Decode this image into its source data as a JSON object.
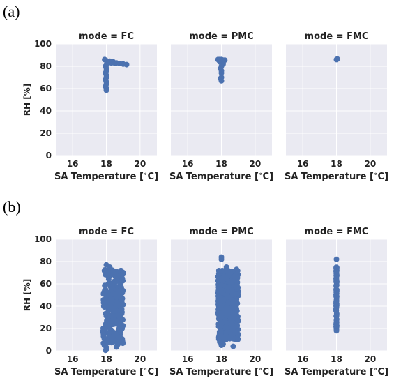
{
  "figure": {
    "panel_labels": [
      "(a)",
      "(b)"
    ]
  },
  "chart_data": [
    {
      "type": "scatter",
      "panel": "(a)",
      "title": "mode = FC",
      "xlabel": "SA Temperature [$^\\circ$C]",
      "ylabel": "RH [%]",
      "xlim": [
        15,
        21
      ],
      "ylim": [
        0,
        100
      ],
      "xticks": [
        16,
        18,
        20
      ],
      "yticks": [
        0,
        20,
        40,
        60,
        80,
        100
      ],
      "grid": true,
      "color": "#4c72b0",
      "points": [
        [
          17.9,
          86
        ],
        [
          18.0,
          85
        ],
        [
          18.05,
          84
        ],
        [
          18.2,
          84.5
        ],
        [
          18.4,
          84
        ],
        [
          18.6,
          83
        ],
        [
          18.8,
          82.5
        ],
        [
          19.0,
          82
        ],
        [
          19.2,
          81.5
        ],
        [
          18.1,
          83.5
        ],
        [
          18.3,
          83
        ],
        [
          18.5,
          82.8
        ],
        [
          17.95,
          80
        ],
        [
          18.0,
          78
        ],
        [
          18.0,
          76
        ],
        [
          17.95,
          74
        ],
        [
          18.0,
          72
        ],
        [
          18.0,
          70
        ],
        [
          17.95,
          68
        ],
        [
          18.0,
          66
        ],
        [
          18.0,
          64
        ],
        [
          17.95,
          62
        ],
        [
          18.0,
          60
        ],
        [
          18.0,
          58.5
        ],
        [
          18.05,
          82
        ],
        [
          18.0,
          81
        ]
      ]
    },
    {
      "type": "scatter",
      "panel": "(a)",
      "title": "mode = PMC",
      "xlabel": "SA Temperature [$^\\circ$C]",
      "xlim": [
        15,
        21
      ],
      "ylim": [
        0,
        100
      ],
      "xticks": [
        16,
        18,
        20
      ],
      "grid": true,
      "color": "#4c72b0",
      "points": [
        [
          17.8,
          86
        ],
        [
          17.9,
          86
        ],
        [
          18.0,
          86
        ],
        [
          18.1,
          85.5
        ],
        [
          18.2,
          85.5
        ],
        [
          17.9,
          84
        ],
        [
          18.0,
          83
        ],
        [
          18.1,
          82
        ],
        [
          18.0,
          80
        ],
        [
          17.95,
          78
        ],
        [
          18.0,
          76
        ],
        [
          18.0,
          74
        ],
        [
          18.0,
          70
        ],
        [
          17.95,
          69
        ],
        [
          18.0,
          67
        ]
      ]
    },
    {
      "type": "scatter",
      "panel": "(a)",
      "title": "mode = FMC",
      "xlabel": "SA Temperature [$^\\circ$C]",
      "xlim": [
        15,
        21
      ],
      "ylim": [
        0,
        100
      ],
      "xticks": [
        16,
        18,
        20
      ],
      "grid": true,
      "color": "#4c72b0",
      "points": [
        [
          18.0,
          86
        ],
        [
          18.05,
          86.5
        ]
      ]
    },
    {
      "type": "scatter",
      "panel": "(b)",
      "title": "mode = FC",
      "xlabel": "SA Temperature [$^\\circ$C]",
      "ylabel": "RH [%]",
      "xlim": [
        15,
        21
      ],
      "ylim": [
        0,
        100
      ],
      "xticks": [
        16,
        18,
        20
      ],
      "yticks": [
        0,
        20,
        40,
        60,
        80,
        100
      ],
      "grid": true,
      "color": "#4c72b0",
      "band": {
        "xmin": 17.8,
        "xmax": 19.0,
        "ymin": 5,
        "ymax": 73,
        "n": 260,
        "seed": 11
      },
      "points": [
        [
          18.0,
          77
        ],
        [
          18.0,
          1
        ],
        [
          18.0,
          3
        ],
        [
          18.2,
          75
        ],
        [
          18.6,
          3.5
        ],
        [
          18.9,
          68
        ],
        [
          18.8,
          12
        ],
        [
          17.95,
          0.5
        ]
      ]
    },
    {
      "type": "scatter",
      "panel": "(b)",
      "title": "mode = PMC",
      "xlabel": "SA Temperature [$^\\circ$C]",
      "xlim": [
        15,
        21
      ],
      "ylim": [
        0,
        100
      ],
      "xticks": [
        16,
        18,
        20
      ],
      "grid": true,
      "color": "#4c72b0",
      "band": {
        "xmin": 17.8,
        "xmax": 19.0,
        "ymin": 10,
        "ymax": 72,
        "n": 520,
        "seed": 23
      },
      "points": [
        [
          18.0,
          84
        ],
        [
          18.0,
          82
        ],
        [
          18.0,
          5
        ],
        [
          18.1,
          6
        ],
        [
          18.3,
          75
        ],
        [
          18.9,
          73
        ],
        [
          18.7,
          4
        ],
        [
          17.9,
          8
        ]
      ]
    },
    {
      "type": "scatter",
      "panel": "(b)",
      "title": "mode = FMC",
      "xlabel": "SA Temperature [$^\\circ$C]",
      "xlim": [
        15,
        21
      ],
      "ylim": [
        0,
        100
      ],
      "xticks": [
        16,
        18,
        20
      ],
      "grid": true,
      "color": "#4c72b0",
      "band": {
        "xmin": 17.98,
        "xmax": 18.02,
        "ymin": 20,
        "ymax": 75,
        "n": 90,
        "seed": 37
      },
      "points": [
        [
          18.0,
          82
        ],
        [
          18.0,
          18
        ],
        [
          18.0,
          19
        ]
      ]
    }
  ]
}
